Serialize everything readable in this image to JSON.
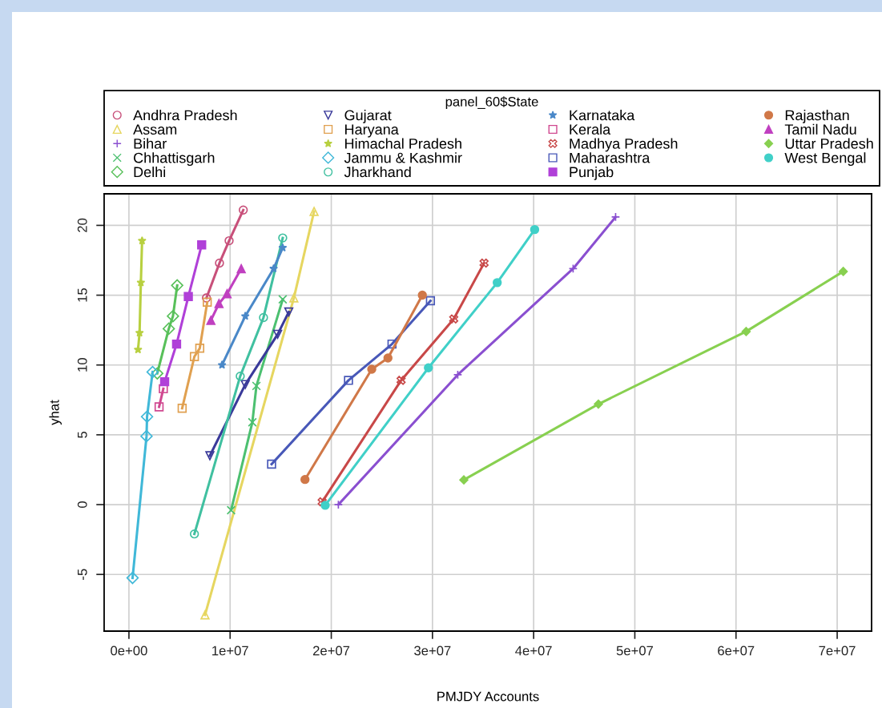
{
  "chart_data": {
    "type": "line",
    "xlabel": "PMJDY Accounts",
    "ylabel": "yhat",
    "legend_title": "panel_60$State",
    "legend": "top",
    "grid": true,
    "xlim": [
      -2450000,
      73400000
    ],
    "ylim": [
      -9.06,
      22.26
    ],
    "xticks": [
      {
        "value": 0,
        "label": "0e+00"
      },
      {
        "value": 10000000,
        "label": "1e+07"
      },
      {
        "value": 20000000,
        "label": "2e+07"
      },
      {
        "value": 30000000,
        "label": "3e+07"
      },
      {
        "value": 40000000,
        "label": "4e+07"
      },
      {
        "value": 50000000,
        "label": "5e+07"
      },
      {
        "value": 60000000,
        "label": "6e+07"
      },
      {
        "value": 70000000,
        "label": "7e+07"
      }
    ],
    "yticks": [
      -5,
      0,
      5,
      10,
      15,
      20
    ],
    "series": [
      {
        "name": "Andhra Pradesh",
        "color": "#c8507a",
        "marker": "circle",
        "x": [
          7660000,
          8950000,
          9900000,
          11300000
        ],
        "values": [
          14.8,
          17.3,
          18.9,
          21.1
        ]
      },
      {
        "name": "Assam",
        "color": "#e6d660",
        "marker": "triangle",
        "x": [
          7520000,
          16300000,
          18300000
        ],
        "values": [
          -7.9,
          14.8,
          21.0
        ]
      },
      {
        "name": "Bihar",
        "color": "#8a4fd0",
        "marker": "plus",
        "x": [
          20700000,
          32500000,
          43900000,
          48100000
        ],
        "values": [
          0.0,
          9.3,
          16.9,
          20.6
        ]
      },
      {
        "name": "Chhattisgarh",
        "color": "#4cc070",
        "marker": "x",
        "x": [
          10100000,
          12200000,
          12600000,
          15200000
        ],
        "values": [
          -0.4,
          5.9,
          8.5,
          14.7
        ]
      },
      {
        "name": "Delhi",
        "color": "#58c05a",
        "marker": "diamond",
        "x": [
          2800000,
          3940000,
          4350000,
          4770000
        ],
        "values": [
          9.4,
          12.6,
          13.5,
          15.7
        ]
      },
      {
        "name": "Gujarat",
        "color": "#3a3a9a",
        "marker": "triangle_down",
        "x": [
          8000000,
          11500000,
          14700000,
          15800000
        ],
        "values": [
          3.5,
          8.6,
          12.2,
          13.8
        ]
      },
      {
        "name": "Haryana",
        "color": "#e0a050",
        "marker": "square_x",
        "x": [
          5260000,
          6470000,
          7000000,
          7740000
        ],
        "values": [
          6.9,
          10.6,
          11.2,
          14.5
        ]
      },
      {
        "name": "Himachal Pradesh",
        "color": "#b8d040",
        "marker": "star",
        "x": [
          900000,
          1050000,
          1180000,
          1300000
        ],
        "values": [
          11.1,
          12.3,
          15.9,
          18.9
        ]
      },
      {
        "name": "Jammu & Kashmir",
        "color": "#40b8d8",
        "marker": "diamond",
        "x": [
          360000,
          1740000,
          1790000,
          2340000
        ],
        "values": [
          -5.25,
          4.9,
          6.3,
          9.5
        ]
      },
      {
        "name": "Jharkhand",
        "color": "#40c0a0",
        "marker": "circle_plus",
        "x": [
          6470000,
          11000000,
          13300000,
          15200000
        ],
        "values": [
          -2.1,
          9.2,
          13.4,
          19.1
        ]
      },
      {
        "name": "Karnataka",
        "color": "#4a88c8",
        "marker": "star",
        "x": [
          9200000,
          11500000,
          14300000,
          15200000
        ],
        "values": [
          10.0,
          13.5,
          16.9,
          18.4
        ]
      },
      {
        "name": "Kerala",
        "color": "#d04890",
        "marker": "square_plus",
        "x": [
          2980000,
          3400000
        ],
        "values": [
          7.0,
          8.3
        ]
      },
      {
        "name": "Madhya Pradesh",
        "color": "#c84848",
        "marker": "cross",
        "x": [
          19100000,
          26900000,
          32100000,
          35100000
        ],
        "values": [
          0.2,
          8.9,
          13.3,
          17.3
        ]
      },
      {
        "name": "Maharashtra",
        "color": "#4858b8",
        "marker": "square_triangle",
        "x": [
          14100000,
          21700000,
          26000000,
          29800000
        ],
        "values": [
          2.9,
          8.9,
          11.5,
          14.6
        ]
      },
      {
        "name": "Punjab",
        "color": "#b040d8",
        "marker": "square_filled",
        "x": [
          3530000,
          4710000,
          5870000,
          7190000
        ],
        "values": [
          8.8,
          11.5,
          14.9,
          18.6
        ]
      },
      {
        "name": "Rajasthan",
        "color": "#d07848",
        "marker": "circle_filled",
        "x": [
          17400000,
          24000000,
          25600000,
          29000000
        ],
        "values": [
          1.8,
          9.7,
          10.5,
          15.0
        ]
      },
      {
        "name": "Tamil Nadu",
        "color": "#c040c0",
        "marker": "triangle_filled",
        "x": [
          8100000,
          8900000,
          9700000,
          11100000
        ],
        "values": [
          13.2,
          14.4,
          15.1,
          16.9
        ]
      },
      {
        "name": "Uttar Pradesh",
        "color": "#88d050",
        "marker": "diamond_filled",
        "x": [
          33100000,
          46400000,
          61000000,
          70600000
        ],
        "values": [
          1.77,
          7.2,
          12.4,
          16.7
        ]
      },
      {
        "name": "West Bengal",
        "color": "#40d0c8",
        "marker": "circle_filled",
        "x": [
          19400000,
          29600000,
          36400000,
          40100000
        ],
        "values": [
          -0.05,
          9.8,
          15.9,
          19.7
        ]
      }
    ]
  }
}
